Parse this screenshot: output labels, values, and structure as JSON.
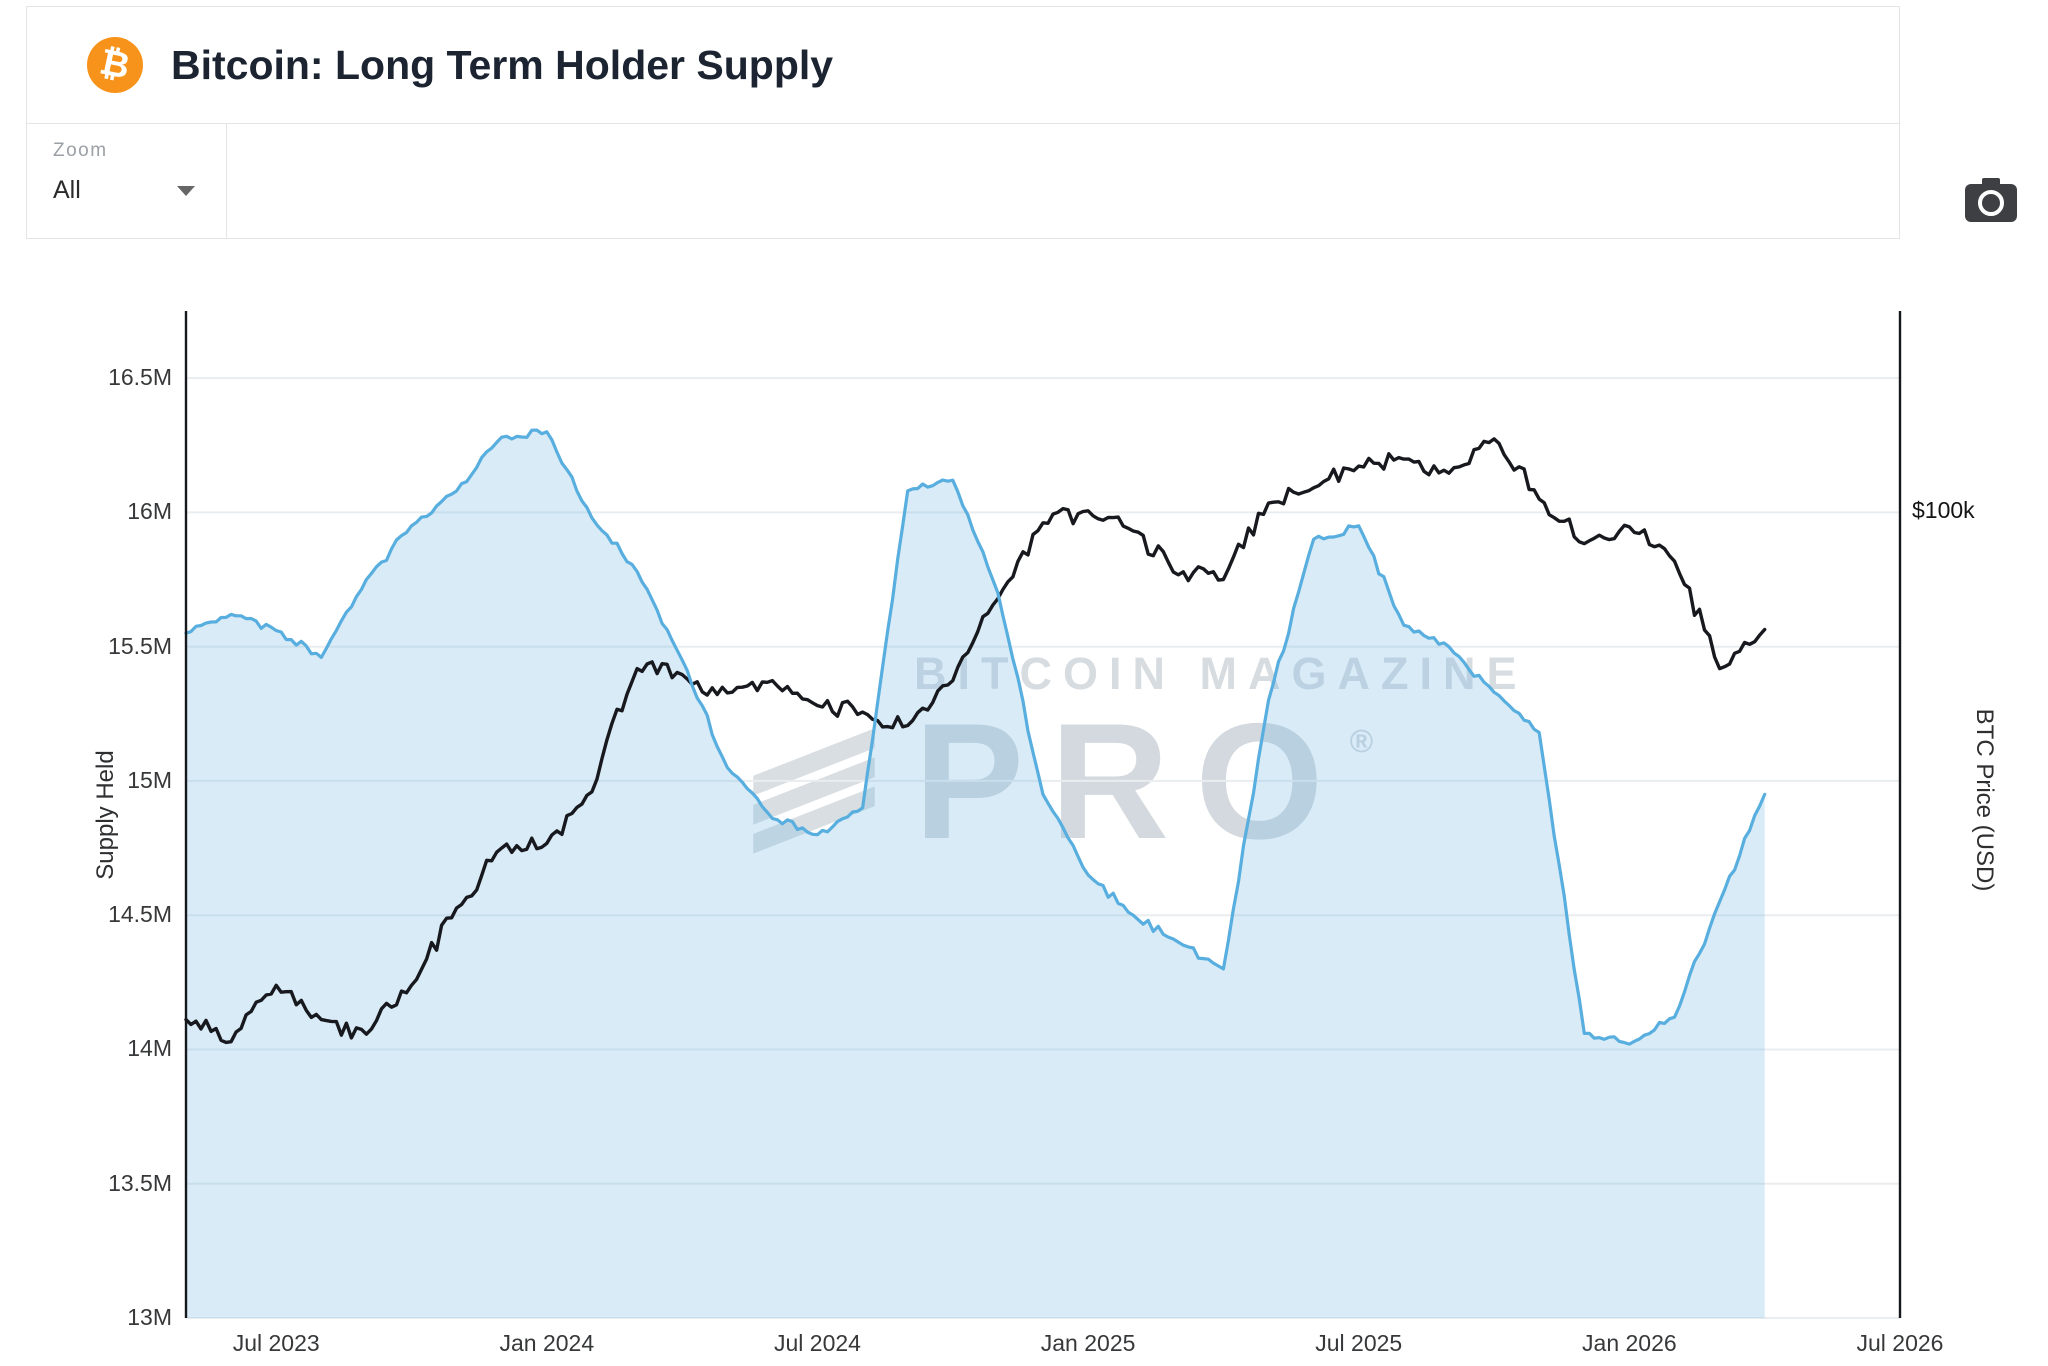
{
  "header": {
    "title": "Bitcoin: Long Term Holder Supply",
    "logo_glyph": "₿"
  },
  "toolbar": {
    "zoom_label": "Zoom",
    "zoom_value": "All",
    "camera_icon": "camera-icon"
  },
  "watermark": {
    "line1": "BITCOIN MAGAZINE",
    "line2": "PRO",
    "registered": "®"
  },
  "brand": {
    "bitcoin_orange": "#f7931a",
    "supply_blue": "#58aede",
    "supply_fill": "rgba(125, 190, 230, 0.30)",
    "price_black": "#17191e"
  },
  "chart_data": {
    "type": "line",
    "title": "Bitcoin: Long Term Holder Supply",
    "grid": "horizontal",
    "legend_position": "none",
    "watermark_text": "BITCOIN MAGAZINE PRO",
    "x_axis": {
      "start": "2023-05",
      "step_months": 1,
      "lim_month_index": [
        0,
        38
      ],
      "ticks": [
        {
          "label": "Jul 2023",
          "m": 2
        },
        {
          "label": "Jan 2024",
          "m": 8
        },
        {
          "label": "Jul 2024",
          "m": 14
        },
        {
          "label": "Jan 2025",
          "m": 20
        },
        {
          "label": "Jul 2025",
          "m": 26
        },
        {
          "label": "Jan 2026",
          "m": 32
        },
        {
          "label": "Jul 2026",
          "m": 38
        }
      ]
    },
    "left_axis": {
      "label": "Supply Held",
      "lim": [
        13,
        16.75
      ],
      "tick_values": [
        13,
        13.5,
        14,
        14.5,
        15,
        15.5,
        16,
        16.5
      ],
      "tick_labels": [
        "13M",
        "13.5M",
        "14M",
        "14.5M",
        "15M",
        "15.5M",
        "16M",
        "16.5M"
      ]
    },
    "right_axis": {
      "label": "BTC Price (USD)",
      "scale": "log",
      "lim_kusd": [
        12.9,
        166
      ],
      "ticks": [
        {
          "label": "$100k",
          "value_kusd": 100
        }
      ]
    },
    "series": [
      {
        "name": "Long Term Holder Supply",
        "axis": "left",
        "unit": "M BTC",
        "color": "#58aede",
        "fill": "rgba(125, 190, 230, 0.30)",
        "monthly_values": [
          15.55,
          15.62,
          15.56,
          15.46,
          15.75,
          15.95,
          16.08,
          16.28,
          16.3,
          15.98,
          15.78,
          15.45,
          15.05,
          14.86,
          14.8,
          14.9,
          16.08,
          16.12,
          15.7,
          14.95,
          14.65,
          14.5,
          14.4,
          14.3,
          15.3,
          15.9,
          15.95,
          15.58,
          15.5,
          15.33,
          15.18,
          14.06,
          14.02,
          14.12,
          14.55,
          14.95
        ]
      },
      {
        "name": "BTC Price",
        "axis": "right",
        "unit": "k USD",
        "color": "#17191e",
        "monthly_values": [
          27.5,
          26,
          30,
          27.5,
          26.5,
          30,
          36.5,
          42.5,
          43,
          49,
          67,
          66,
          63,
          65,
          61,
          60,
          58,
          65,
          80,
          97,
          100,
          95,
          85,
          84,
          102,
          106,
          112,
          114,
          110,
          120,
          103,
          92,
          96,
          88,
          67,
          74
        ]
      }
    ]
  }
}
